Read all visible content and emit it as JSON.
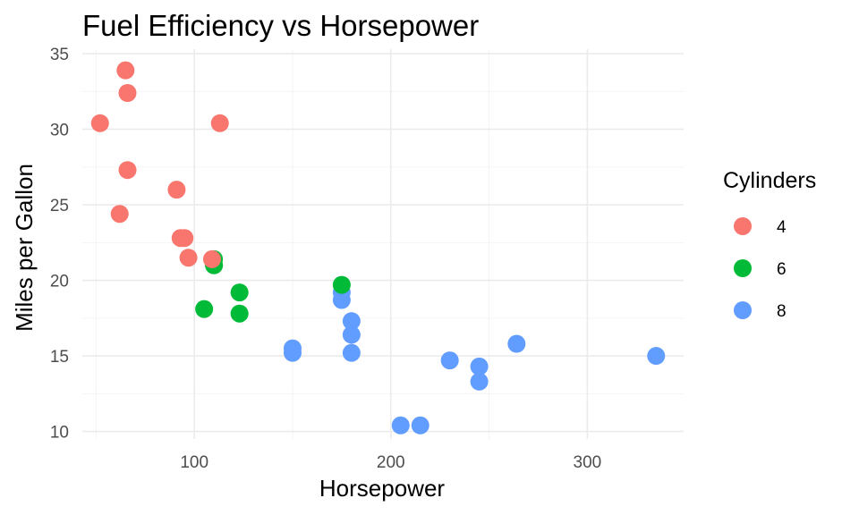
{
  "chart_data": {
    "type": "scatter",
    "title": "Fuel Efficiency vs Horsepower",
    "xlabel": "Horsepower",
    "ylabel": "Miles per Gallon",
    "xlim": [
      43,
      349
    ],
    "ylim": [
      9.5,
      35.3
    ],
    "x_ticks": [
      100,
      200,
      300
    ],
    "y_ticks": [
      10,
      15,
      20,
      25,
      30,
      35
    ],
    "grid": true,
    "legend": {
      "title": "Cylinders",
      "position": "right"
    },
    "series": [
      {
        "name": "4",
        "color": "#F8766D",
        "points": [
          [
            93,
            22.8
          ],
          [
            62,
            24.4
          ],
          [
            95,
            22.8
          ],
          [
            66,
            32.4
          ],
          [
            52,
            30.4
          ],
          [
            65,
            33.9
          ],
          [
            97,
            21.5
          ],
          [
            66,
            27.3
          ],
          [
            91,
            26.0
          ],
          [
            113,
            30.4
          ],
          [
            109,
            21.4
          ]
        ]
      },
      {
        "name": "6",
        "color": "#00BA38",
        "points": [
          [
            110,
            21.0
          ],
          [
            110,
            21.0
          ],
          [
            110,
            21.4
          ],
          [
            105,
            18.1
          ],
          [
            123,
            19.2
          ],
          [
            123,
            17.8
          ],
          [
            175,
            19.7
          ]
        ]
      },
      {
        "name": "8",
        "color": "#619CFF",
        "points": [
          [
            175,
            18.7
          ],
          [
            245,
            14.3
          ],
          [
            180,
            16.4
          ],
          [
            180,
            17.3
          ],
          [
            180,
            15.2
          ],
          [
            205,
            10.4
          ],
          [
            215,
            10.4
          ],
          [
            230,
            14.7
          ],
          [
            150,
            15.5
          ],
          [
            150,
            15.2
          ],
          [
            245,
            13.3
          ],
          [
            175,
            19.2
          ],
          [
            264,
            15.8
          ],
          [
            335,
            15.0
          ]
        ]
      }
    ]
  }
}
